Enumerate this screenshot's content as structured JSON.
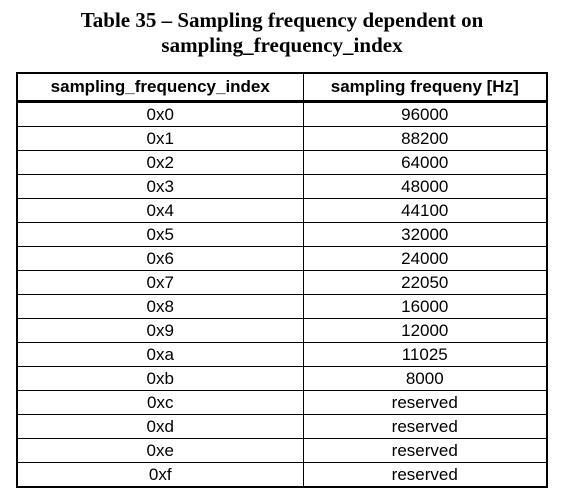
{
  "caption": {
    "line1": "Table 35 – Sampling frequency dependent on",
    "line2": "sampling_frequency_index"
  },
  "table": {
    "headers": [
      "sampling_frequency_index",
      "sampling frequeny [Hz]"
    ],
    "rows": [
      [
        "0x0",
        "96000"
      ],
      [
        "0x1",
        "88200"
      ],
      [
        "0x2",
        "64000"
      ],
      [
        "0x3",
        "48000"
      ],
      [
        "0x4",
        "44100"
      ],
      [
        "0x5",
        "32000"
      ],
      [
        "0x6",
        "24000"
      ],
      [
        "0x7",
        "22050"
      ],
      [
        "0x8",
        "16000"
      ],
      [
        "0x9",
        "12000"
      ],
      [
        "0xa",
        "11025"
      ],
      [
        "0xb",
        "8000"
      ],
      [
        "0xc",
        "reserved"
      ],
      [
        "0xd",
        "reserved"
      ],
      [
        "0xe",
        "reserved"
      ],
      [
        "0xf",
        "reserved"
      ]
    ]
  }
}
